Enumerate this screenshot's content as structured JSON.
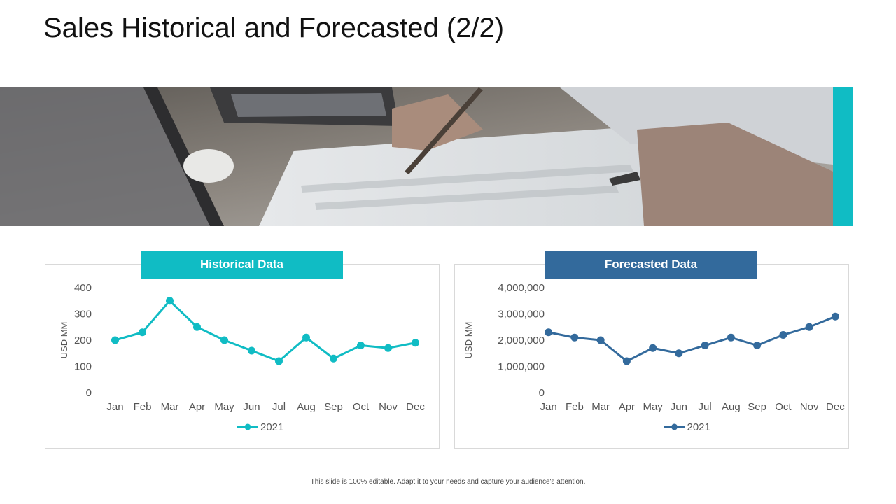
{
  "slide": {
    "title": "Sales Historical and Forecasted (2/2)",
    "footer": "This slide is 100% editable.  Adapt it to your needs and capture your audience's attention."
  },
  "colors": {
    "teal": "#10bcc4",
    "blue": "#336a9c",
    "grid": "#d9d9d9",
    "axis_text": "#555555"
  },
  "chart_data": [
    {
      "type": "line",
      "header": "Historical Data",
      "categories": [
        "Jan",
        "Feb",
        "Mar",
        "Apr",
        "May",
        "Jun",
        "Jul",
        "Aug",
        "Sep",
        "Oct",
        "Nov",
        "Dec"
      ],
      "series": [
        {
          "name": "2021",
          "values": [
            200,
            230,
            350,
            250,
            200,
            160,
            120,
            210,
            130,
            180,
            170,
            190
          ]
        }
      ],
      "ylabel": "USD MM",
      "ylim": [
        0,
        400
      ],
      "yticks": [
        0,
        100,
        200,
        300,
        400
      ],
      "ytick_labels": [
        "0",
        "100",
        "200",
        "300",
        "400"
      ],
      "legend": "bottom",
      "color": "#10bcc4"
    },
    {
      "type": "line",
      "header": "Forecasted Data",
      "categories": [
        "Jan",
        "Feb",
        "Mar",
        "Apr",
        "May",
        "Jun",
        "Jul",
        "Aug",
        "Sep",
        "Oct",
        "Nov",
        "Dec"
      ],
      "series": [
        {
          "name": "2021",
          "values": [
            2300000,
            2100000,
            2000000,
            1200000,
            1700000,
            1500000,
            1800000,
            2100000,
            1800000,
            2200000,
            2500000,
            2900000
          ]
        }
      ],
      "ylabel": "USD MM",
      "ylim": [
        0,
        4000000
      ],
      "yticks": [
        0,
        1000000,
        2000000,
        3000000,
        4000000
      ],
      "ytick_labels": [
        "0",
        "1,000,000",
        "2,000,000",
        "3,000,000",
        "4,000,000"
      ],
      "legend": "bottom",
      "color": "#336a9c"
    }
  ]
}
